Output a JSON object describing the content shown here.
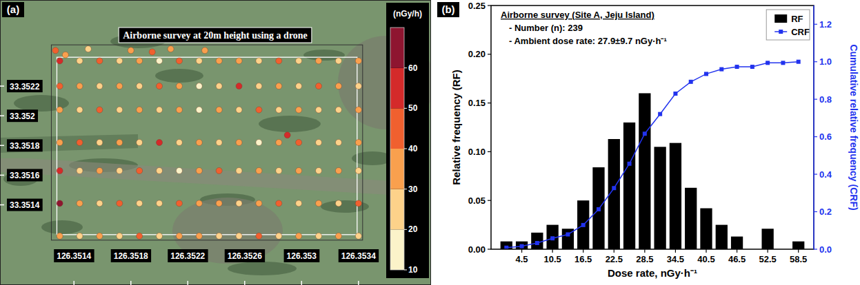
{
  "chart_data": [
    {
      "type": "scatter",
      "panel_label": "(a)",
      "title": "Airborne survey at 20m height using a drone",
      "x": [
        126.3513,
        126.35144,
        126.35158,
        126.35172,
        126.35186,
        126.352,
        126.35214,
        126.35228,
        126.35242,
        126.35256,
        126.3527,
        126.35284,
        126.35298,
        126.35312,
        126.35326,
        126.3534,
        126.3513,
        126.35144,
        126.35158,
        126.35172,
        126.35186,
        126.352,
        126.35214,
        126.35228,
        126.35242,
        126.35256,
        126.3527,
        126.35284,
        126.35298,
        126.35312,
        126.35326,
        126.3534,
        126.3513,
        126.35144,
        126.35158,
        126.35172,
        126.35186,
        126.352,
        126.35214,
        126.35228,
        126.35242,
        126.35256,
        126.3527,
        126.35284,
        126.35298,
        126.35312,
        126.35326,
        126.3534,
        126.3513,
        126.35144,
        126.35158,
        126.35172,
        126.35186,
        126.352,
        126.35214,
        126.35228,
        126.35242,
        126.35256,
        126.3527,
        126.35284,
        126.35298,
        126.35312,
        126.35326,
        126.3534,
        126.3513,
        126.35144,
        126.35158,
        126.35172,
        126.35186,
        126.352,
        126.35214,
        126.35228,
        126.35242,
        126.35256,
        126.3527,
        126.35284,
        126.35298,
        126.35312,
        126.35326,
        126.3534,
        126.3513,
        126.35144,
        126.35158,
        126.35172,
        126.35186,
        126.352,
        126.35214,
        126.35228,
        126.35242,
        126.35256,
        126.3527,
        126.35284,
        126.35298,
        126.35312,
        126.35326,
        126.3534,
        126.3513,
        126.35144,
        126.35158,
        126.35172,
        126.35186,
        126.352,
        126.35214,
        126.35228,
        126.35242,
        126.35256,
        126.3527,
        126.35284,
        126.35298,
        126.35312,
        126.35326,
        126.3534,
        126.35127,
        126.35134,
        126.3515,
        126.3518,
        126.35195,
        126.35208,
        126.35232,
        126.3529
      ],
      "values": [
        33.35237,
        33.35237,
        33.35237,
        33.35237,
        33.35237,
        33.35237,
        33.35237,
        33.35237,
        33.35237,
        33.35237,
        33.35237,
        33.35237,
        33.35237,
        33.35237,
        33.35237,
        33.35237,
        33.3522,
        33.3522,
        33.3522,
        33.3522,
        33.3522,
        33.3522,
        33.3522,
        33.3522,
        33.3522,
        33.3522,
        33.3522,
        33.3522,
        33.3522,
        33.3522,
        33.3522,
        33.3522,
        33.35204,
        33.35204,
        33.35204,
        33.35204,
        33.35204,
        33.35204,
        33.35204,
        33.35204,
        33.35204,
        33.35204,
        33.35204,
        33.35204,
        33.35204,
        33.35204,
        33.35204,
        33.35204,
        33.35182,
        33.35182,
        33.35182,
        33.35182,
        33.35182,
        33.35182,
        33.35182,
        33.35182,
        33.35182,
        33.35182,
        33.35182,
        33.35182,
        33.35182,
        33.35182,
        33.35182,
        33.35182,
        33.35163,
        33.35163,
        33.35163,
        33.35163,
        33.35163,
        33.35163,
        33.35163,
        33.35163,
        33.35163,
        33.35163,
        33.35163,
        33.35163,
        33.35163,
        33.35163,
        33.35163,
        33.35163,
        33.35141,
        33.35141,
        33.35141,
        33.35141,
        33.35141,
        33.35141,
        33.35141,
        33.35141,
        33.35141,
        33.35141,
        33.35141,
        33.35141,
        33.35141,
        33.35141,
        33.35141,
        33.35141,
        33.35119,
        33.35119,
        33.35119,
        33.35119,
        33.35119,
        33.35119,
        33.35119,
        33.35119,
        33.35119,
        33.35119,
        33.35119,
        33.35119,
        33.35119,
        33.35119,
        33.35119,
        33.35119,
        33.35244,
        33.35241,
        33.35245,
        33.35244,
        33.35243,
        33.35245,
        33.35244,
        33.35187
      ],
      "dose": [
        58,
        25,
        40,
        22,
        33,
        18,
        45,
        28,
        30,
        35,
        20,
        42,
        27,
        31,
        24,
        36,
        48,
        30,
        26,
        38,
        22,
        45,
        33,
        19,
        29,
        52,
        27,
        35,
        24,
        40,
        30,
        21,
        35,
        28,
        44,
        26,
        31,
        22,
        38,
        17,
        33,
        27,
        41,
        25,
        36,
        29,
        23,
        34,
        30,
        42,
        24,
        36,
        28,
        50,
        20,
        33,
        26,
        39,
        15,
        31,
        44,
        27,
        22,
        37,
        55,
        27,
        34,
        23,
        41,
        29,
        19,
        36,
        47,
        25,
        32,
        28,
        38,
        21,
        33,
        26,
        62,
        33,
        25,
        40,
        28,
        22,
        45,
        31,
        37,
        24,
        30,
        43,
        26,
        35,
        29,
        48,
        38,
        24,
        31,
        27,
        44,
        20,
        33,
        36,
        25,
        29,
        41,
        22,
        34,
        28,
        39,
        26,
        45,
        30,
        25,
        35,
        40,
        30,
        38,
        50
      ],
      "colorbar": {
        "title": "(nGy/h)",
        "range": [
          10,
          70
        ],
        "ticks": [
          10,
          20,
          30,
          40,
          50,
          60
        ],
        "colors": [
          "#fbf3c9",
          "#fdd28a",
          "#f9a04e",
          "#f0602f",
          "#d42a2a",
          "#8e1530"
        ]
      },
      "xlim": [
        126.35088,
        126.35391
      ],
      "ylim": [
        33.35086,
        33.35278
      ],
      "xticks": [
        126.3514,
        126.3518,
        126.3522,
        126.3526,
        126.353,
        126.3534
      ],
      "yticks": [
        33.3514,
        33.3516,
        33.3518,
        33.352,
        33.3522
      ]
    },
    {
      "type": "histogram",
      "panel_label": "(b)",
      "annotations": [
        "Airborne survey (Site A, Jeju Island)",
        "- Number (n): 239",
        "- Ambient dose rate: 27.9±9.7 nGy·h⁻¹"
      ],
      "x_label": "Dose rate, nGy·h⁻¹",
      "y_label": "Relative frequency (RF)",
      "y2_label": "Cumulative relative frequency (CRF)",
      "bins": [
        0,
        3,
        6,
        9,
        12,
        15,
        18,
        21,
        24,
        27,
        30,
        33,
        36,
        39,
        42,
        45,
        48,
        51,
        54,
        57,
        60
      ],
      "series": [
        {
          "name": "RF",
          "type": "bar",
          "color": "#000000",
          "values": [
            0.008,
            0.008,
            0.017,
            0.025,
            0.021,
            0.05,
            0.084,
            0.113,
            0.13,
            0.16,
            0.105,
            0.109,
            0.063,
            0.042,
            0.025,
            0.013,
            0,
            0.021,
            0,
            0.008
          ]
        },
        {
          "name": "CRF",
          "type": "line",
          "axis": "y2",
          "color": "#2233ee",
          "marker": "square",
          "values": [
            0.008,
            0.016,
            0.033,
            0.058,
            0.079,
            0.129,
            0.213,
            0.326,
            0.456,
            0.616,
            0.721,
            0.83,
            0.893,
            0.935,
            0.96,
            0.973,
            0.973,
            0.994,
            0.994,
            1.0
          ]
        }
      ],
      "xlim": [
        -1.5,
        61.5
      ],
      "xticks": [
        4.5,
        10.5,
        16.5,
        22.5,
        28.5,
        34.5,
        40.5,
        46.5,
        52.5,
        58.5
      ],
      "ylim": [
        0,
        0.25
      ],
      "yticks": [
        {
          "value": 0,
          "label": "0.00"
        },
        {
          "value": 0.05,
          "label": "0.05"
        },
        {
          "value": 0.1,
          "label": "0.10"
        },
        {
          "value": 0.15,
          "label": "0.15"
        },
        {
          "value": 0.2,
          "label": "0.20"
        },
        {
          "value": 0.25,
          "label": "0.25"
        }
      ],
      "y2lim": [
        0,
        1.3
      ],
      "y2ticks": [
        {
          "value": 0,
          "label": "0.0"
        },
        {
          "value": 0.2,
          "label": "0.2"
        },
        {
          "value": 0.4,
          "label": "0.4"
        },
        {
          "value": 0.6,
          "label": "0.6"
        },
        {
          "value": 0.8,
          "label": "0.8"
        },
        {
          "value": 1.0,
          "label": "1.0"
        },
        {
          "value": 1.2,
          "label": "1.2"
        }
      ],
      "legend": "top-right"
    }
  ]
}
